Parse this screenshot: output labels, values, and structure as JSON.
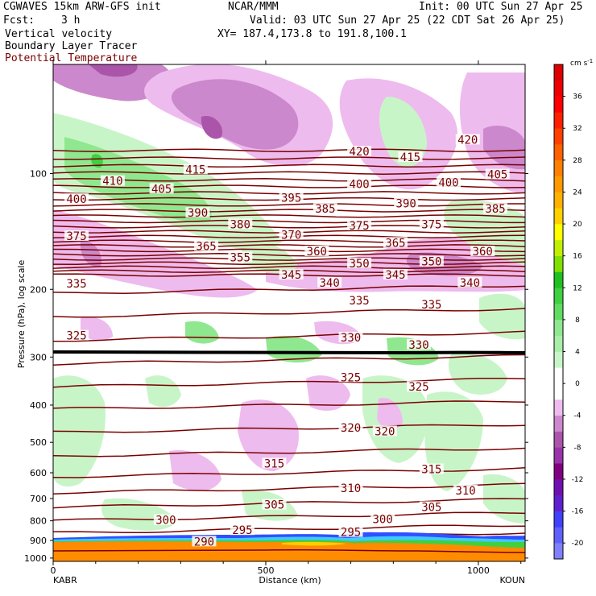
{
  "header": {
    "model": "CGWAVES 15km ARW-GFS init",
    "org": "NCAR/MMM",
    "init": "Init: 00 UTC Sun 27 Apr 25",
    "fcst_label": "Fcst:",
    "fcst_value": "3 h",
    "valid": "Valid: 03 UTC Sun 27 Apr 25 (22 CDT Sat 26 Apr 25)",
    "field1": "Vertical velocity",
    "field2": "Boundary Layer Tracer",
    "field3": "Potential Temperature",
    "xy": "XY= 187.4,173.8 to 191.8,100.1"
  },
  "colors": {
    "theta_line": "#7a0000",
    "pos_light": "#c8f5c8",
    "pos_mid": "#8fe88f",
    "pos_strong": "#40d040",
    "neg_light": "#eebbee",
    "neg_mid": "#cc88cc",
    "neg_strong": "#aa55aa",
    "pbl_orange": "#ff8c00",
    "pbl_blue": "#3050ff"
  },
  "chart_data": {
    "type": "cross-section",
    "xlabel": "Distance (km)",
    "ylabel": "Pressure (hPa), log scale",
    "x_ticks": [
      0,
      500,
      1000
    ],
    "x_range": [
      0,
      1110
    ],
    "y_ticks": [
      100,
      200,
      300,
      400,
      500,
      600,
      700,
      800,
      900,
      1000
    ],
    "y_scale": "log",
    "x_endpoints": {
      "left": "KABR",
      "right": "KOUN"
    },
    "theta_labels": [
      {
        "v": "420",
        "x": 720,
        "p": 88
      },
      {
        "v": "420",
        "x": 975,
        "p": 82
      },
      {
        "v": "415",
        "x": 335,
        "p": 98
      },
      {
        "v": "415",
        "x": 840,
        "p": 91
      },
      {
        "v": "410",
        "x": 140,
        "p": 105
      },
      {
        "v": "405",
        "x": 255,
        "p": 110
      },
      {
        "v": "405",
        "x": 1045,
        "p": 101
      },
      {
        "v": "400",
        "x": 55,
        "p": 117
      },
      {
        "v": "400",
        "x": 720,
        "p": 107
      },
      {
        "v": "400",
        "x": 930,
        "p": 106
      },
      {
        "v": "395",
        "x": 560,
        "p": 116
      },
      {
        "v": "390",
        "x": 340,
        "p": 127
      },
      {
        "v": "390",
        "x": 830,
        "p": 120
      },
      {
        "v": "385",
        "x": 640,
        "p": 124
      },
      {
        "v": "385",
        "x": 1040,
        "p": 124
      },
      {
        "v": "380",
        "x": 440,
        "p": 136
      },
      {
        "v": "375",
        "x": 55,
        "p": 146
      },
      {
        "v": "375",
        "x": 720,
        "p": 137
      },
      {
        "v": "375",
        "x": 890,
        "p": 136
      },
      {
        "v": "370",
        "x": 560,
        "p": 145
      },
      {
        "v": "365",
        "x": 360,
        "p": 155
      },
      {
        "v": "365",
        "x": 805,
        "p": 152
      },
      {
        "v": "360",
        "x": 620,
        "p": 160
      },
      {
        "v": "360",
        "x": 1010,
        "p": 160
      },
      {
        "v": "355",
        "x": 440,
        "p": 166
      },
      {
        "v": "350",
        "x": 720,
        "p": 172
      },
      {
        "v": "350",
        "x": 890,
        "p": 170
      },
      {
        "v": "345",
        "x": 560,
        "p": 184
      },
      {
        "v": "345",
        "x": 805,
        "p": 184
      },
      {
        "v": "340",
        "x": 650,
        "p": 193
      },
      {
        "v": "340",
        "x": 980,
        "p": 193
      },
      {
        "v": "335",
        "x": 55,
        "p": 194
      },
      {
        "v": "335",
        "x": 720,
        "p": 215
      },
      {
        "v": "335",
        "x": 890,
        "p": 220
      },
      {
        "v": "330",
        "x": 700,
        "p": 268
      },
      {
        "v": "330",
        "x": 860,
        "p": 280
      },
      {
        "v": "325",
        "x": 55,
        "p": 265
      },
      {
        "v": "325",
        "x": 700,
        "p": 340
      },
      {
        "v": "325",
        "x": 860,
        "p": 360
      },
      {
        "v": "320",
        "x": 700,
        "p": 460
      },
      {
        "v": "320",
        "x": 780,
        "p": 470
      },
      {
        "v": "315",
        "x": 520,
        "p": 570
      },
      {
        "v": "315",
        "x": 890,
        "p": 590
      },
      {
        "v": "310",
        "x": 700,
        "p": 660
      },
      {
        "v": "310",
        "x": 970,
        "p": 670
      },
      {
        "v": "305",
        "x": 520,
        "p": 730
      },
      {
        "v": "305",
        "x": 890,
        "p": 740
      },
      {
        "v": "300",
        "x": 265,
        "p": 800
      },
      {
        "v": "300",
        "x": 775,
        "p": 795
      },
      {
        "v": "295",
        "x": 445,
        "p": 850
      },
      {
        "v": "295",
        "x": 700,
        "p": 860
      },
      {
        "v": "290",
        "x": 355,
        "p": 910
      }
    ],
    "colorbar": {
      "unit": "cm s",
      "unit_sup": "-1",
      "levels": [
        -22,
        -20,
        -18,
        -16,
        -14,
        -12,
        -10,
        -8,
        -6,
        -4,
        -2,
        2,
        4,
        6,
        8,
        10,
        12,
        14,
        16,
        18,
        20,
        22,
        24,
        26,
        28,
        30,
        32,
        34,
        36,
        38,
        40
      ],
      "tick_labels": [
        -20,
        -16,
        -12,
        -8,
        -4,
        0,
        4,
        8,
        12,
        16,
        20,
        24,
        28,
        32,
        36
      ],
      "colors": [
        "#8080ff",
        "#6060ff",
        "#4040ff",
        "#6020d0",
        "#7010b0",
        "#800080",
        "#9933aa",
        "#aa55aa",
        "#cc88cc",
        "#eebbee",
        "#ffffff",
        "#c8f5c8",
        "#a8eea8",
        "#8fe88f",
        "#60dd60",
        "#40d040",
        "#20c020",
        "#80e000",
        "#c0f000",
        "#ffff00",
        "#ffd000",
        "#ffb000",
        "#ff9900",
        "#ff8000",
        "#ff6000",
        "#ff4000",
        "#ff2000",
        "#ff0000",
        "#ee0000",
        "#dd0000"
      ]
    }
  }
}
